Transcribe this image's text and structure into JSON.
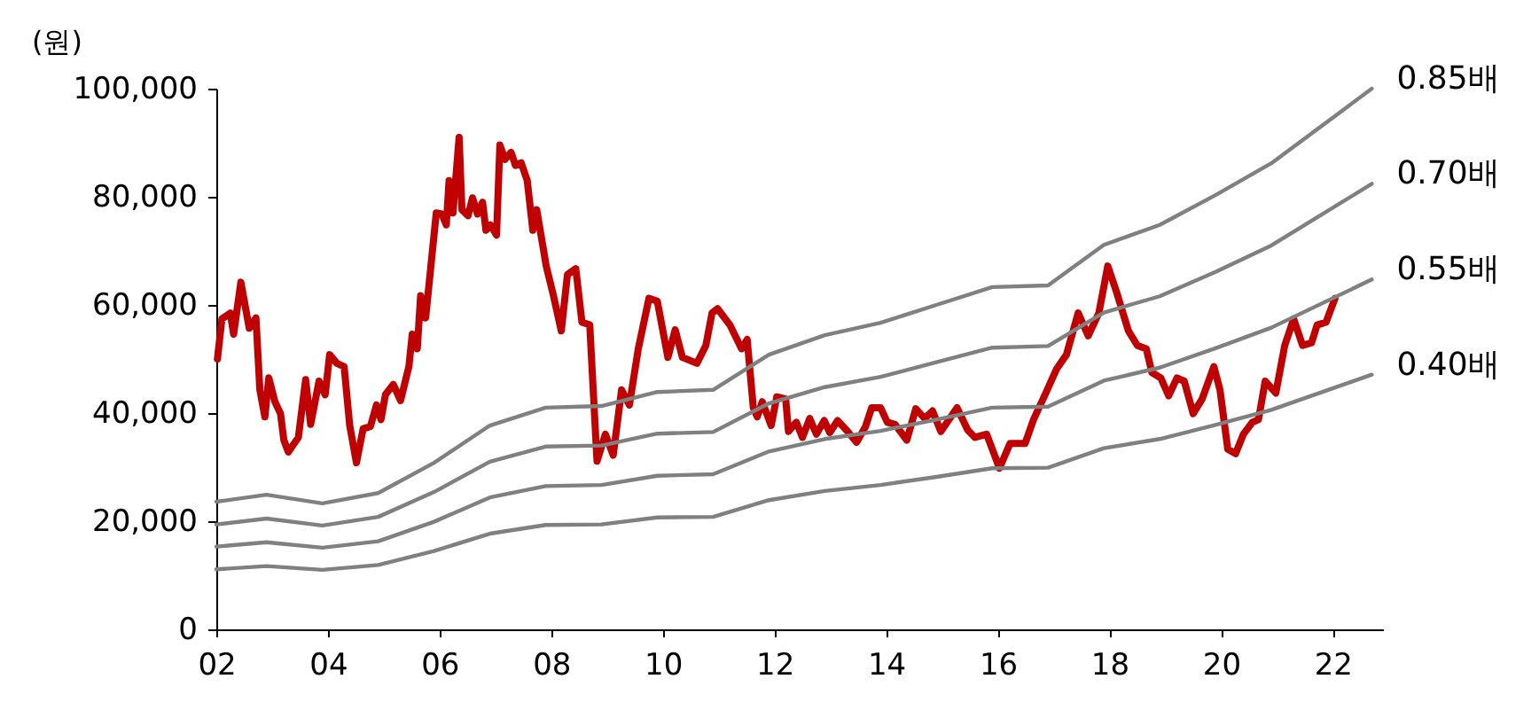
{
  "chart_data": {
    "type": "line",
    "ylabel": "(원)",
    "xlim": [
      2002,
      2022.9
    ],
    "ylim": [
      0,
      100000
    ],
    "xticks": [
      {
        "value": 2002,
        "label": "02"
      },
      {
        "value": 2004,
        "label": "04"
      },
      {
        "value": 2006,
        "label": "06"
      },
      {
        "value": 2008,
        "label": "08"
      },
      {
        "value": 2010,
        "label": "10"
      },
      {
        "value": 2012,
        "label": "12"
      },
      {
        "value": 2014,
        "label": "14"
      },
      {
        "value": 2016,
        "label": "16"
      },
      {
        "value": 2018,
        "label": "18"
      },
      {
        "value": 2020,
        "label": "20"
      },
      {
        "value": 2022,
        "label": "22"
      }
    ],
    "yticks": [
      {
        "value": 0,
        "label": "0"
      },
      {
        "value": 20000,
        "label": "20,000"
      },
      {
        "value": 40000,
        "label": "40,000"
      },
      {
        "value": 60000,
        "label": "60,000"
      },
      {
        "value": 80000,
        "label": "80,000"
      },
      {
        "value": 100000,
        "label": "100,000"
      }
    ],
    "grid": false,
    "marker": "none",
    "line_style": "solid",
    "series": [
      {
        "color": "#c00000",
        "x": [
          2002.02,
          2002.1,
          2002.25,
          2002.31,
          2002.44,
          2002.59,
          2002.71,
          2002.78,
          2002.87,
          2002.94,
          2003.05,
          2003.15,
          2003.21,
          2003.29,
          2003.47,
          2003.6,
          2003.69,
          2003.84,
          2003.95,
          2004.03,
          2004.16,
          2004.29,
          2004.39,
          2004.51,
          2004.63,
          2004.76,
          2004.87,
          2004.95,
          2005.03,
          2005.17,
          2005.3,
          2005.45,
          2005.51,
          2005.6,
          2005.66,
          2005.75,
          2005.94,
          2006.04,
          2006.12,
          2006.17,
          2006.24,
          2006.35,
          2006.4,
          2006.51,
          2006.59,
          2006.68,
          2006.77,
          2006.83,
          2006.91,
          2007.02,
          2007.08,
          2007.17,
          2007.28,
          2007.36,
          2007.46,
          2007.57,
          2007.67,
          2007.74,
          2007.91,
          2008.04,
          2008.18,
          2008.29,
          2008.44,
          2008.55,
          2008.69,
          2008.82,
          2008.97,
          2009.11,
          2009.26,
          2009.4,
          2009.56,
          2009.75,
          2009.9,
          2010.09,
          2010.22,
          2010.35,
          2010.61,
          2010.77,
          2010.88,
          2010.98,
          2011.2,
          2011.41,
          2011.51,
          2011.62,
          2011.69,
          2011.78,
          2011.94,
          2012.04,
          2012.2,
          2012.25,
          2012.39,
          2012.5,
          2012.63,
          2012.75,
          2012.89,
          2012.99,
          2013.13,
          2013.31,
          2013.47,
          2013.63,
          2013.74,
          2013.9,
          2014.02,
          2014.16,
          2014.37,
          2014.53,
          2014.69,
          2014.83,
          2014.98,
          2015.27,
          2015.46,
          2015.59,
          2015.8,
          2016.03,
          2016.22,
          2016.49,
          2016.64,
          2016.86,
          2017.05,
          2017.23,
          2017.44,
          2017.62,
          2017.81,
          2017.97,
          2018.13,
          2018.34,
          2018.5,
          2018.66,
          2018.76,
          2018.92,
          2019.06,
          2019.21,
          2019.34,
          2019.5,
          2019.66,
          2019.87,
          2019.98,
          2020.12,
          2020.26,
          2020.4,
          2020.56,
          2020.67,
          2020.79,
          2020.98,
          2021.14,
          2021.3,
          2021.46,
          2021.62,
          2021.72,
          2021.88,
          2022.04
        ],
        "values": [
          50000,
          57400,
          58500,
          54600,
          64200,
          55700,
          57600,
          44300,
          39300,
          46500,
          42100,
          39900,
          35000,
          32800,
          35500,
          46200,
          37900,
          45900,
          43400,
          50800,
          49200,
          48600,
          37700,
          30800,
          37100,
          37500,
          41500,
          38800,
          43400,
          45300,
          42300,
          48600,
          54600,
          51900,
          61700,
          57600,
          77000,
          76800,
          74800,
          83000,
          77000,
          91000,
          77600,
          76500,
          79800,
          76800,
          79000,
          73800,
          74800,
          72900,
          89600,
          86900,
          88200,
          85800,
          86300,
          83000,
          73800,
          77600,
          67200,
          61700,
          55200,
          65600,
          66700,
          56800,
          56300,
          31100,
          36100,
          32200,
          44300,
          41500,
          51900,
          61200,
          60700,
          50300,
          55400,
          50300,
          49200,
          52500,
          58500,
          59300,
          56300,
          51900,
          53600,
          41000,
          39300,
          42100,
          37700,
          43000,
          42600,
          36600,
          38300,
          35500,
          39000,
          36100,
          38600,
          36400,
          38600,
          36600,
          34600,
          37500,
          41000,
          41000,
          38300,
          37900,
          35000,
          40800,
          39000,
          40400,
          36600,
          41000,
          36900,
          35500,
          36100,
          29800,
          34400,
          34400,
          38800,
          43700,
          48100,
          50800,
          58500,
          54300,
          58500,
          67200,
          62300,
          55200,
          52500,
          51900,
          47500,
          46500,
          43200,
          46500,
          45900,
          39900,
          42600,
          48600,
          44300,
          33300,
          32500,
          36100,
          38300,
          38800,
          45900,
          43700,
          52500,
          57400,
          52500,
          53000,
          56300,
          56800,
          61200
        ]
      },
      {
        "name": "0.85배",
        "color": "#808080",
        "x": [
          2002,
          2002.9,
          2003.9,
          2004.9,
          2005.9,
          2006.9,
          2007.9,
          2008.9,
          2009.9,
          2010.9,
          2011.9,
          2012.9,
          2013.9,
          2014.9,
          2015.9,
          2016.9,
          2017.9,
          2018.9,
          2019.9,
          2020.9,
          2022.7
        ],
        "values": [
          23600,
          24900,
          23300,
          25200,
          30800,
          37700,
          41000,
          41300,
          43900,
          44300,
          50800,
          54400,
          56700,
          60000,
          63300,
          63600,
          71100,
          74800,
          80300,
          86200,
          100000
        ]
      },
      {
        "name": "0.70배",
        "color": "#808080",
        "x": [
          2002,
          2002.9,
          2003.9,
          2004.9,
          2005.9,
          2006.9,
          2007.9,
          2008.9,
          2009.9,
          2010.9,
          2011.9,
          2012.9,
          2013.9,
          2014.9,
          2015.9,
          2016.9,
          2017.9,
          2018.9,
          2019.9,
          2020.9,
          2022.7
        ],
        "values": [
          19400,
          20500,
          19200,
          20800,
          25400,
          31000,
          33800,
          34000,
          36200,
          36500,
          41800,
          44800,
          46700,
          49400,
          52100,
          52400,
          58600,
          61600,
          66100,
          71000,
          82400
        ]
      },
      {
        "name": "0.55배",
        "color": "#808080",
        "x": [
          2002,
          2002.9,
          2003.9,
          2004.9,
          2005.9,
          2006.9,
          2007.9,
          2008.9,
          2009.9,
          2010.9,
          2011.9,
          2012.9,
          2013.9,
          2014.9,
          2015.9,
          2016.9,
          2017.9,
          2018.9,
          2019.9,
          2020.9,
          2022.7
        ],
        "values": [
          15300,
          16100,
          15100,
          16300,
          19900,
          24400,
          26500,
          26700,
          28400,
          28700,
          32900,
          35200,
          36700,
          38800,
          41000,
          41200,
          46000,
          48400,
          52000,
          55800,
          64700
        ]
      },
      {
        "name": "0.40배",
        "color": "#808080",
        "x": [
          2002,
          2002.9,
          2003.9,
          2004.9,
          2005.9,
          2006.9,
          2007.9,
          2008.9,
          2009.9,
          2010.9,
          2011.9,
          2012.9,
          2013.9,
          2014.9,
          2015.9,
          2016.9,
          2017.9,
          2018.9,
          2019.9,
          2020.9,
          2022.7
        ],
        "values": [
          11100,
          11700,
          11000,
          11900,
          14500,
          17700,
          19300,
          19400,
          20700,
          20800,
          23900,
          25600,
          26700,
          28200,
          29800,
          29900,
          33500,
          35200,
          37800,
          40600,
          47100
        ]
      }
    ]
  }
}
